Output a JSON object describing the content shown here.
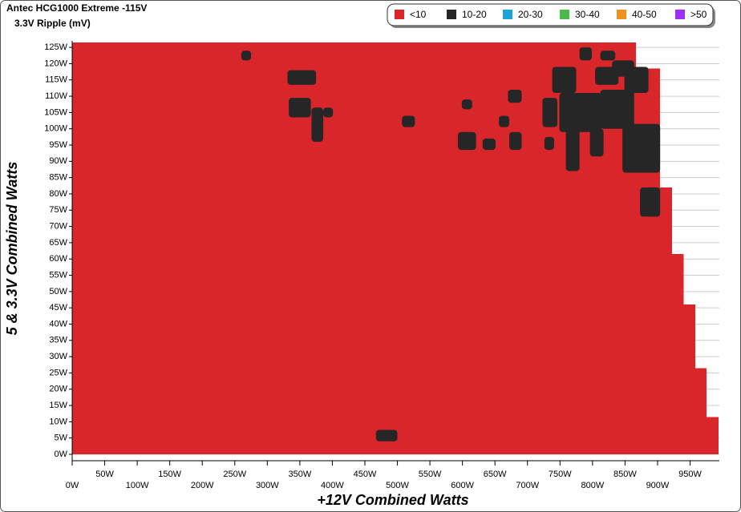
{
  "chart_data": {
    "type": "region-map",
    "title": "Antec HCG1000 Extreme -115V",
    "subtitle": "3.3V Ripple (mV)",
    "xlabel": "+12V Combined Watts",
    "ylabel": "5 & 3.3V Combined Watts",
    "xlim": [
      0,
      995
    ],
    "ylim": [
      0,
      127
    ],
    "grid": true,
    "legend_position": "top-right",
    "legend": [
      {
        "name": "<10",
        "color": "#d9262b"
      },
      {
        "name": "10-20",
        "color": "#262626"
      },
      {
        "name": "20-30",
        "color": "#1aa3d9"
      },
      {
        "name": "30-40",
        "color": "#4cb84c"
      },
      {
        "name": "40-50",
        "color": "#f0901e"
      },
      {
        "name": ">50",
        "color": "#9b30ff"
      }
    ],
    "yticks": [
      {
        "value": 0,
        "label": "0W"
      },
      {
        "value": 5,
        "label": "5W"
      },
      {
        "value": 10,
        "label": "10W"
      },
      {
        "value": 15,
        "label": "15W"
      },
      {
        "value": 20,
        "label": "20W"
      },
      {
        "value": 25,
        "label": "25W"
      },
      {
        "value": 30,
        "label": "30W"
      },
      {
        "value": 35,
        "label": "35W"
      },
      {
        "value": 40,
        "label": "40W"
      },
      {
        "value": 45,
        "label": "45W"
      },
      {
        "value": 50,
        "label": "50W"
      },
      {
        "value": 55,
        "label": "55W"
      },
      {
        "value": 60,
        "label": "60W"
      },
      {
        "value": 65,
        "label": "65W"
      },
      {
        "value": 70,
        "label": "70W"
      },
      {
        "value": 75,
        "label": "75W"
      },
      {
        "value": 80,
        "label": "80W"
      },
      {
        "value": 85,
        "label": "85W"
      },
      {
        "value": 90,
        "label": "90W"
      },
      {
        "value": 95,
        "label": "95W"
      },
      {
        "value": 100,
        "label": "100W"
      },
      {
        "value": 105,
        "label": "105W"
      },
      {
        "value": 110,
        "label": "110W"
      },
      {
        "value": 115,
        "label": "115W"
      },
      {
        "value": 120,
        "label": "120W"
      },
      {
        "value": 125,
        "label": "125W"
      }
    ],
    "xticks": [
      {
        "value": 0,
        "label": "0W"
      },
      {
        "value": 50,
        "label": "50W"
      },
      {
        "value": 100,
        "label": "100W"
      },
      {
        "value": 150,
        "label": "150W"
      },
      {
        "value": 200,
        "label": "200W"
      },
      {
        "value": 250,
        "label": "250W"
      },
      {
        "value": 300,
        "label": "300W"
      },
      {
        "value": 350,
        "label": "350W"
      },
      {
        "value": 400,
        "label": "400W"
      },
      {
        "value": 450,
        "label": "450W"
      },
      {
        "value": 500,
        "label": "500W"
      },
      {
        "value": 550,
        "label": "550W"
      },
      {
        "value": 600,
        "label": "600W"
      },
      {
        "value": 650,
        "label": "650W"
      },
      {
        "value": 700,
        "label": "700W"
      },
      {
        "value": 750,
        "label": "750W"
      },
      {
        "value": 800,
        "label": "800W"
      },
      {
        "value": 850,
        "label": "850W"
      },
      {
        "value": 900,
        "label": "900W"
      },
      {
        "value": 950,
        "label": "950W"
      }
    ],
    "region": [
      {
        "y": [
          0,
          11.5
        ],
        "xmax": 994
      },
      {
        "y": [
          11.5,
          26.5
        ],
        "xmax": 975
      },
      {
        "y": [
          26.5,
          46
        ],
        "xmax": 958
      },
      {
        "y": [
          46,
          61.5
        ],
        "xmax": 940
      },
      {
        "y": [
          61.5,
          82
        ],
        "xmax": 922
      },
      {
        "y": [
          82,
          118.5
        ],
        "xmax": 904
      },
      {
        "y": [
          118.5,
          126.5
        ],
        "xmax": 867
      }
    ],
    "cells": [
      {
        "x": [
          260,
          275
        ],
        "y": [
          121,
          124
        ]
      },
      {
        "x": [
          331,
          375
        ],
        "y": [
          113.5,
          118
        ]
      },
      {
        "x": [
          333,
          367
        ],
        "y": [
          103.5,
          109.5
        ]
      },
      {
        "x": [
          368,
          386
        ],
        "y": [
          96,
          106.5
        ]
      },
      {
        "x": [
          386,
          401
        ],
        "y": [
          103.5,
          106.5
        ]
      },
      {
        "x": [
          467,
          500
        ],
        "y": [
          4,
          7.5
        ]
      },
      {
        "x": [
          507,
          527
        ],
        "y": [
          100.5,
          104
        ]
      },
      {
        "x": [
          599,
          615
        ],
        "y": [
          106,
          109
        ]
      },
      {
        "x": [
          593,
          621
        ],
        "y": [
          93.5,
          99
        ]
      },
      {
        "x": [
          631,
          651
        ],
        "y": [
          93.5,
          97
        ]
      },
      {
        "x": [
          656,
          672
        ],
        "y": [
          100.5,
          104
        ]
      },
      {
        "x": [
          670,
          691
        ],
        "y": [
          108,
          112
        ]
      },
      {
        "x": [
          672,
          691
        ],
        "y": [
          93.5,
          99
        ]
      },
      {
        "x": [
          726,
          741
        ],
        "y": [
          93.5,
          97.5
        ]
      },
      {
        "x": [
          723,
          746
        ],
        "y": [
          100.5,
          109.5
        ]
      },
      {
        "x": [
          738,
          775
        ],
        "y": [
          111,
          119
        ]
      },
      {
        "x": [
          749,
          814
        ],
        "y": [
          99,
          111
        ]
      },
      {
        "x": [
          759,
          780
        ],
        "y": [
          87,
          100
        ]
      },
      {
        "x": [
          796,
          817
        ],
        "y": [
          91.5,
          100
        ]
      },
      {
        "x": [
          780,
          799
        ],
        "y": [
          121,
          125
        ]
      },
      {
        "x": [
          804,
          840
        ],
        "y": [
          113.5,
          119
        ]
      },
      {
        "x": [
          812,
          835
        ],
        "y": [
          121,
          124
        ]
      },
      {
        "x": [
          812,
          864
        ],
        "y": [
          100,
          112
        ]
      },
      {
        "x": [
          830,
          864
        ],
        "y": [
          116,
          121
        ]
      },
      {
        "x": [
          846,
          904
        ],
        "y": [
          86.5,
          101.5
        ]
      },
      {
        "x": [
          849,
          886
        ],
        "y": [
          111,
          119
        ]
      },
      {
        "x": [
          873,
          904
        ],
        "y": [
          73,
          82
        ]
      }
    ],
    "cells_legend": 1
  }
}
